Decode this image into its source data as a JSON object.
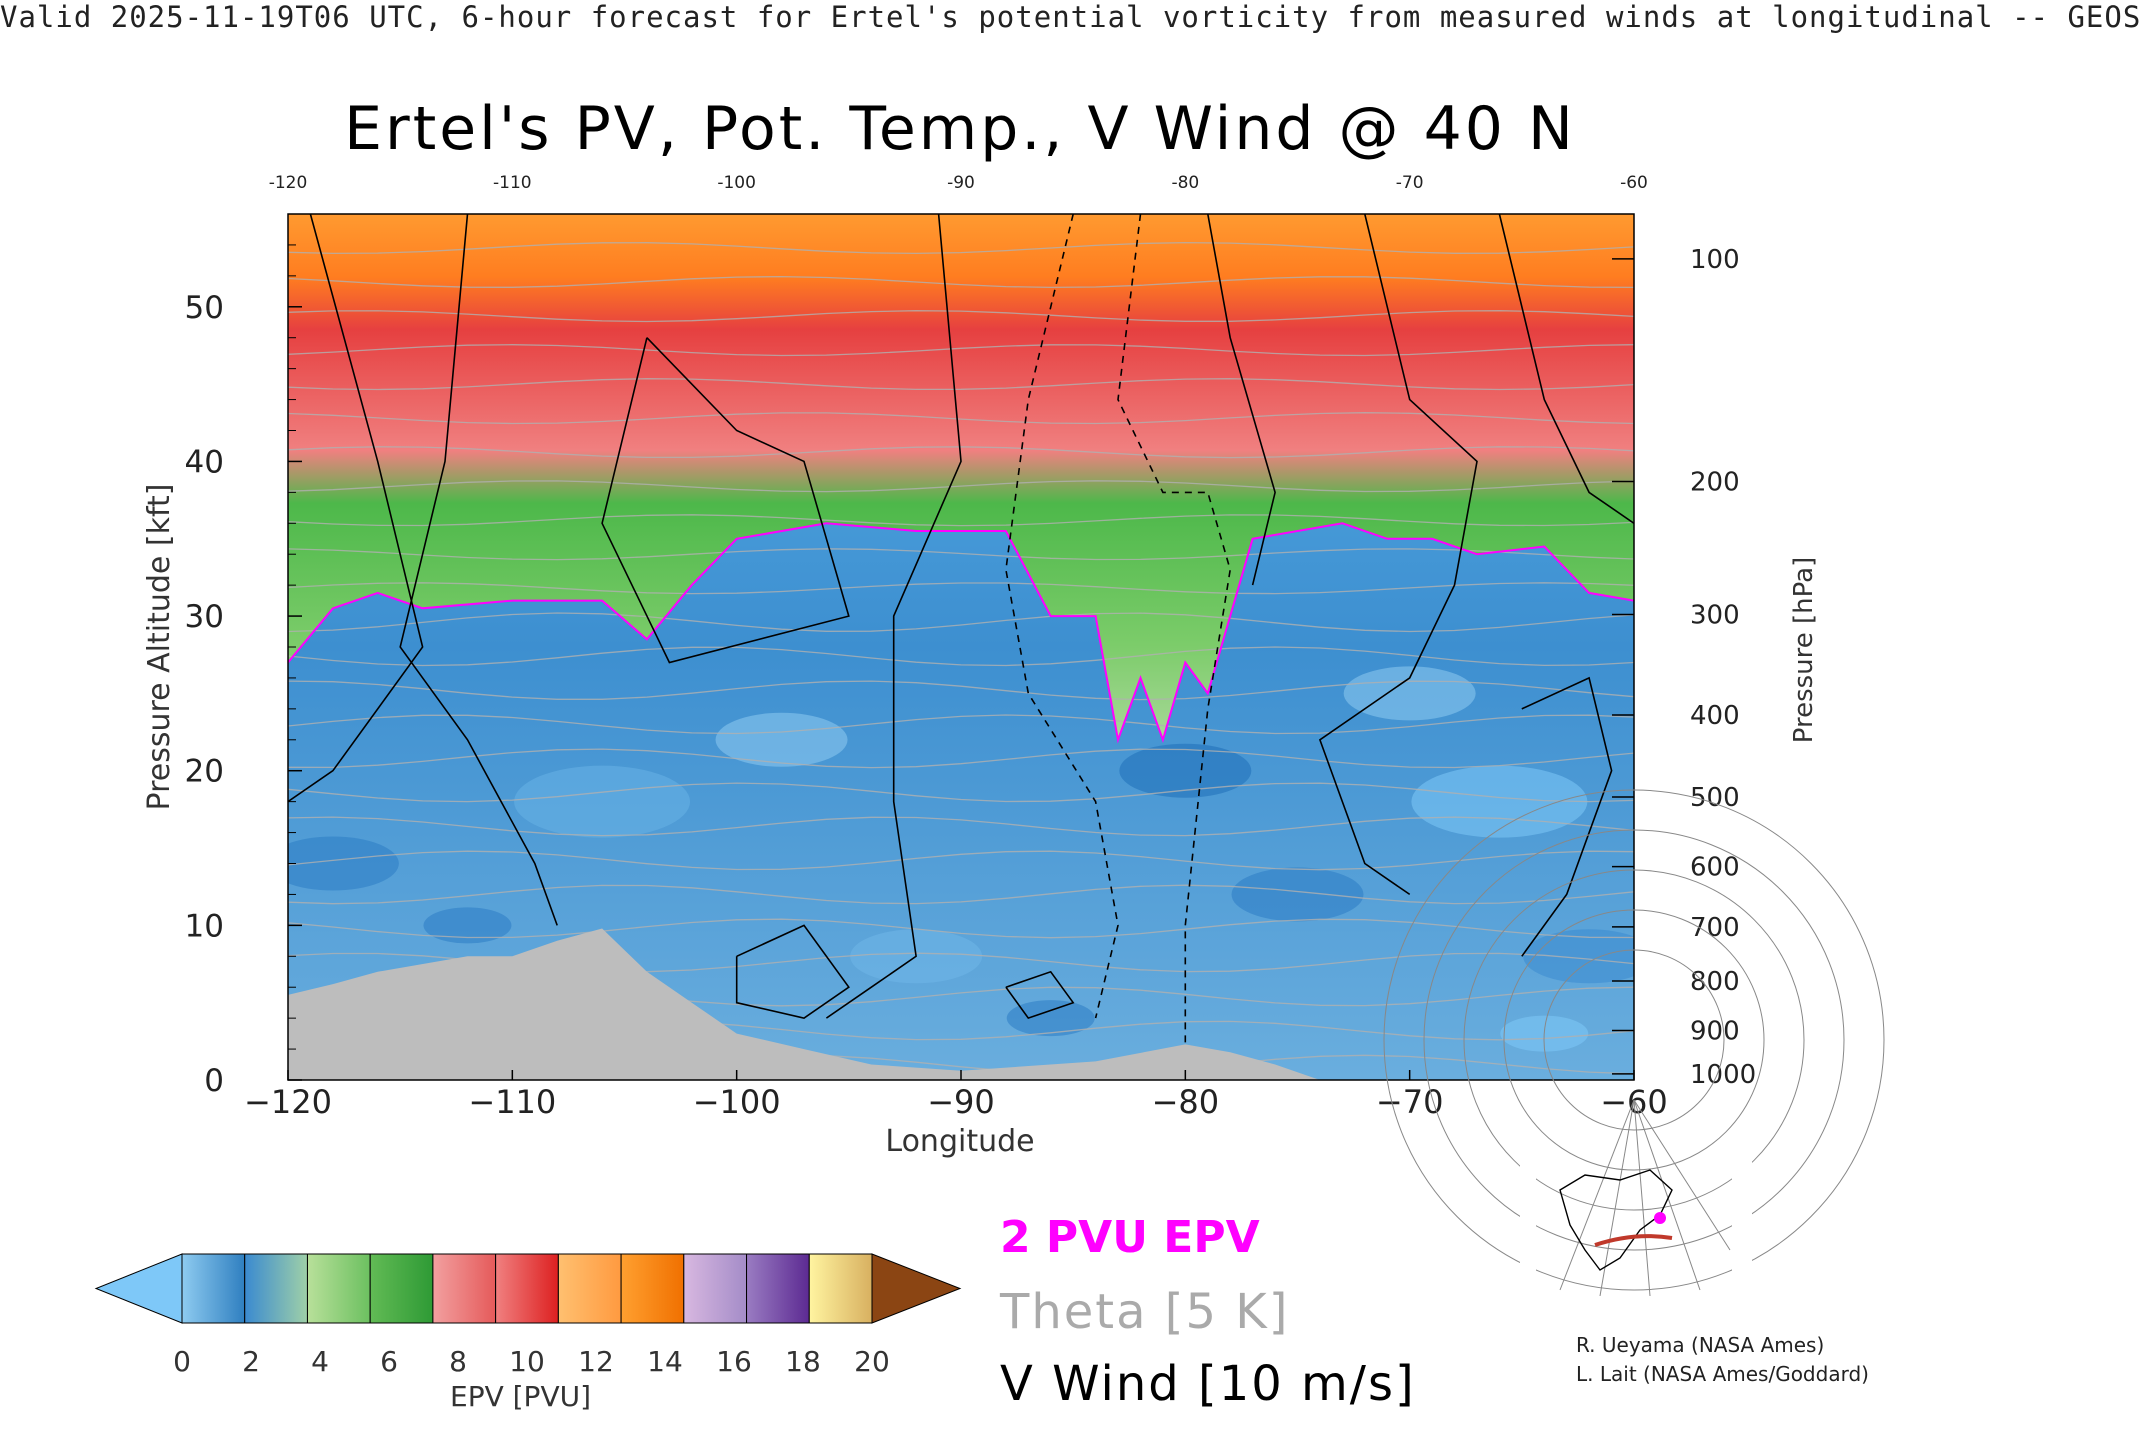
{
  "header": {
    "banner": "Valid 2025-11-19T06 UTC, 6-hour forecast for Ertel's potential vorticity from measured winds at longitudinal -- GEOS",
    "title": "Ertel's PV, Pot. Temp., V Wind @ 40 N"
  },
  "legend": {
    "epv_contour": "2 PVU EPV",
    "theta_contour": "Theta [5 K]",
    "wind_contour": "V Wind [10 m/s]"
  },
  "colorbar": {
    "label": "EPV [PVU]",
    "ticks": [
      "0",
      "2",
      "4",
      "6",
      "8",
      "10",
      "12",
      "14",
      "16",
      "18",
      "20"
    ],
    "under_color": "#7ec8f8",
    "over_color": "#8b4513",
    "segments": [
      [
        "#8ecbf0",
        "#2f7fc0"
      ],
      [
        "#3a8ad0",
        "#9fd0a8"
      ],
      [
        "#b8e09a",
        "#6cc060"
      ],
      [
        "#62bb55",
        "#2e9a35"
      ],
      [
        "#f2a0a0",
        "#e55a5a"
      ],
      [
        "#f08080",
        "#dd2020"
      ],
      [
        "#ffc070",
        "#ff9a40"
      ],
      [
        "#ffa030",
        "#f07000"
      ],
      [
        "#d8b8e0",
        "#a48cc8"
      ],
      [
        "#9a7cc2",
        "#5c2a92"
      ],
      [
        "#fff4a0",
        "#d8b060"
      ]
    ]
  },
  "credits": {
    "line1": "R. Ueyama (NASA Ames)",
    "line2": "L. Lait (NASA Ames/Goddard)"
  },
  "chart_data": {
    "type": "heatmap",
    "title": "Ertel's PV, Pot. Temp., V Wind @ 40 N",
    "xlabel": "Longitude",
    "ylabel": "Pressure Altitude [kft]",
    "y2label": "Pressure [hPa]",
    "xlim": [
      -120,
      -60
    ],
    "ylim": [
      0,
      56
    ],
    "x_ticks": [
      -120,
      -110,
      -100,
      -90,
      -80,
      -70,
      -60
    ],
    "x_tick_labels": [
      "−120",
      "−110",
      "−100",
      "−90",
      "−80",
      "−70",
      "−60"
    ],
    "top_tick_labels": [
      "-120",
      "-110",
      "-100",
      "-90",
      "-80",
      "-70",
      "-60"
    ],
    "y_ticks": [
      0,
      10,
      20,
      30,
      40,
      50
    ],
    "pressure_ticks": [
      {
        "hpa": 100,
        "kft": 53.1
      },
      {
        "hpa": 200,
        "kft": 38.7
      },
      {
        "hpa": 300,
        "kft": 30.1
      },
      {
        "hpa": 400,
        "kft": 23.6
      },
      {
        "hpa": 500,
        "kft": 18.3
      },
      {
        "hpa": 600,
        "kft": 13.8
      },
      {
        "hpa": 700,
        "kft": 9.9
      },
      {
        "hpa": 800,
        "kft": 6.4
      },
      {
        "hpa": 900,
        "kft": 3.2
      },
      {
        "hpa": 1000,
        "kft": 0.4
      }
    ],
    "colorbar_range": [
      0,
      20
    ],
    "colorbar_step": 2,
    "tropopause_2pvu_kft": [
      {
        "lon": -120,
        "kft": 27
      },
      {
        "lon": -118,
        "kft": 30.5
      },
      {
        "lon": -116,
        "kft": 31.5
      },
      {
        "lon": -114,
        "kft": 30.5
      },
      {
        "lon": -110,
        "kft": 31
      },
      {
        "lon": -106,
        "kft": 31
      },
      {
        "lon": -104,
        "kft": 28.5
      },
      {
        "lon": -102,
        "kft": 32
      },
      {
        "lon": -100,
        "kft": 35
      },
      {
        "lon": -96,
        "kft": 36
      },
      {
        "lon": -92,
        "kft": 35.5
      },
      {
        "lon": -88,
        "kft": 35.5
      },
      {
        "lon": -86,
        "kft": 30
      },
      {
        "lon": -84,
        "kft": 30
      },
      {
        "lon": -83,
        "kft": 22
      },
      {
        "lon": -82,
        "kft": 26
      },
      {
        "lon": -81,
        "kft": 22
      },
      {
        "lon": -80,
        "kft": 27
      },
      {
        "lon": -79,
        "kft": 25
      },
      {
        "lon": -78,
        "kft": 30
      },
      {
        "lon": -77,
        "kft": 35
      },
      {
        "lon": -73,
        "kft": 36
      },
      {
        "lon": -71,
        "kft": 35
      },
      {
        "lon": -69,
        "kft": 35
      },
      {
        "lon": -67,
        "kft": 34
      },
      {
        "lon": -64,
        "kft": 34.5
      },
      {
        "lon": -62,
        "kft": 31.5
      },
      {
        "lon": -60,
        "kft": 31
      }
    ],
    "terrain_kft": [
      {
        "lon": -120,
        "kft": 5.5
      },
      {
        "lon": -118,
        "kft": 6.2
      },
      {
        "lon": -116,
        "kft": 7
      },
      {
        "lon": -112,
        "kft": 8
      },
      {
        "lon": -110,
        "kft": 8
      },
      {
        "lon": -108,
        "kft": 9
      },
      {
        "lon": -106,
        "kft": 9.8
      },
      {
        "lon": -104,
        "kft": 7
      },
      {
        "lon": -102,
        "kft": 5
      },
      {
        "lon": -100,
        "kft": 3
      },
      {
        "lon": -97,
        "kft": 2
      },
      {
        "lon": -94,
        "kft": 1
      },
      {
        "lon": -90,
        "kft": 0.6
      },
      {
        "lon": -84,
        "kft": 1.2
      },
      {
        "lon": -80,
        "kft": 2.3
      },
      {
        "lon": -78,
        "kft": 1.8
      },
      {
        "lon": -76,
        "kft": 1
      },
      {
        "lon": -74,
        "kft": 0
      }
    ],
    "stratosphere_pv_bands_kft": [
      {
        "kft_from": 31,
        "kft_to": 40,
        "pvu": 5,
        "label": "green band above tropopause"
      },
      {
        "kft_from": 40,
        "kft_to": 50,
        "pvu": 9,
        "label": "red band"
      },
      {
        "kft_from": 50,
        "kft_to": 56,
        "pvu": 12,
        "label": "orange cap"
      }
    ],
    "grid": false
  }
}
